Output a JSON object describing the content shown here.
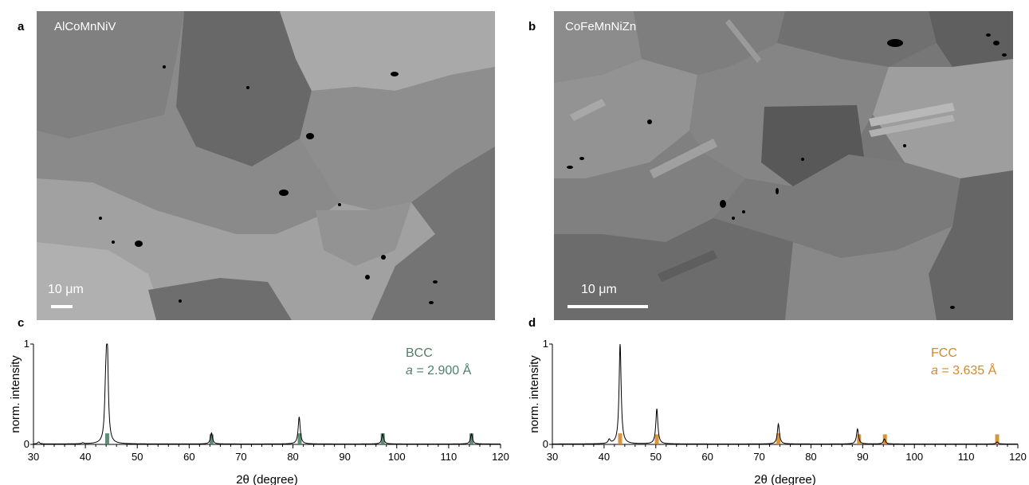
{
  "panels": {
    "a": {
      "letter": "a",
      "label": "AlCoMnNiV",
      "scale": "10 μm"
    },
    "b": {
      "letter": "b",
      "label": "CoFeMnNiZn",
      "scale": "10 μm"
    },
    "c": {
      "letter": "c"
    },
    "d": {
      "letter": "d"
    }
  },
  "chart_data": [
    {
      "type": "line",
      "panel": "c",
      "xlabel": "2θ (degree)",
      "ylabel": "norm. intensity",
      "xlim": [
        30,
        120
      ],
      "ylim": [
        0,
        1
      ],
      "xticks": [
        30,
        40,
        50,
        60,
        70,
        80,
        90,
        100,
        110,
        120
      ],
      "yticks": [
        0,
        1
      ],
      "annotation_line1": "BCC",
      "annotation_a": "a",
      "annotation_rest": " = 2.900 Å",
      "ref_color": "#4f7f69",
      "measured_peaks": [
        {
          "x": 31.0,
          "y": 0.02
        },
        {
          "x": 39.5,
          "y": 0.01
        },
        {
          "x": 43.9,
          "y": 0.38
        },
        {
          "x": 44.2,
          "y": 1.0
        },
        {
          "x": 64.3,
          "y": 0.11
        },
        {
          "x": 81.2,
          "y": 0.27
        },
        {
          "x": 97.3,
          "y": 0.1
        },
        {
          "x": 114.4,
          "y": 0.1
        }
      ],
      "reference_peaks": [
        {
          "x": 44.2,
          "y": 0.11
        },
        {
          "x": 64.3,
          "y": 0.1
        },
        {
          "x": 81.3,
          "y": 0.11
        },
        {
          "x": 97.3,
          "y": 0.11
        },
        {
          "x": 114.4,
          "y": 0.11
        }
      ]
    },
    {
      "type": "line",
      "panel": "d",
      "xlabel": "2θ (degree)",
      "ylabel": "norm. intensity",
      "xlim": [
        30,
        120
      ],
      "ylim": [
        0,
        1
      ],
      "xticks": [
        30,
        40,
        50,
        60,
        70,
        80,
        90,
        100,
        110,
        120
      ],
      "yticks": [
        0,
        1
      ],
      "annotation_line1": "FCC",
      "annotation_a": "a",
      "annotation_rest": " = 3.635 Å",
      "ref_color": "#d4892a",
      "measured_peaks": [
        {
          "x": 41.0,
          "y": 0.04
        },
        {
          "x": 43.1,
          "y": 1.0
        },
        {
          "x": 50.2,
          "y": 0.35
        },
        {
          "x": 73.7,
          "y": 0.2
        },
        {
          "x": 89.0,
          "y": 0.15
        },
        {
          "x": 94.2,
          "y": 0.05
        },
        {
          "x": 116.0,
          "y": 0.02
        }
      ],
      "reference_peaks": [
        {
          "x": 43.1,
          "y": 0.11
        },
        {
          "x": 50.2,
          "y": 0.1
        },
        {
          "x": 73.7,
          "y": 0.11
        },
        {
          "x": 89.3,
          "y": 0.1
        },
        {
          "x": 94.3,
          "y": 0.1
        },
        {
          "x": 116.0,
          "y": 0.1
        }
      ]
    }
  ]
}
